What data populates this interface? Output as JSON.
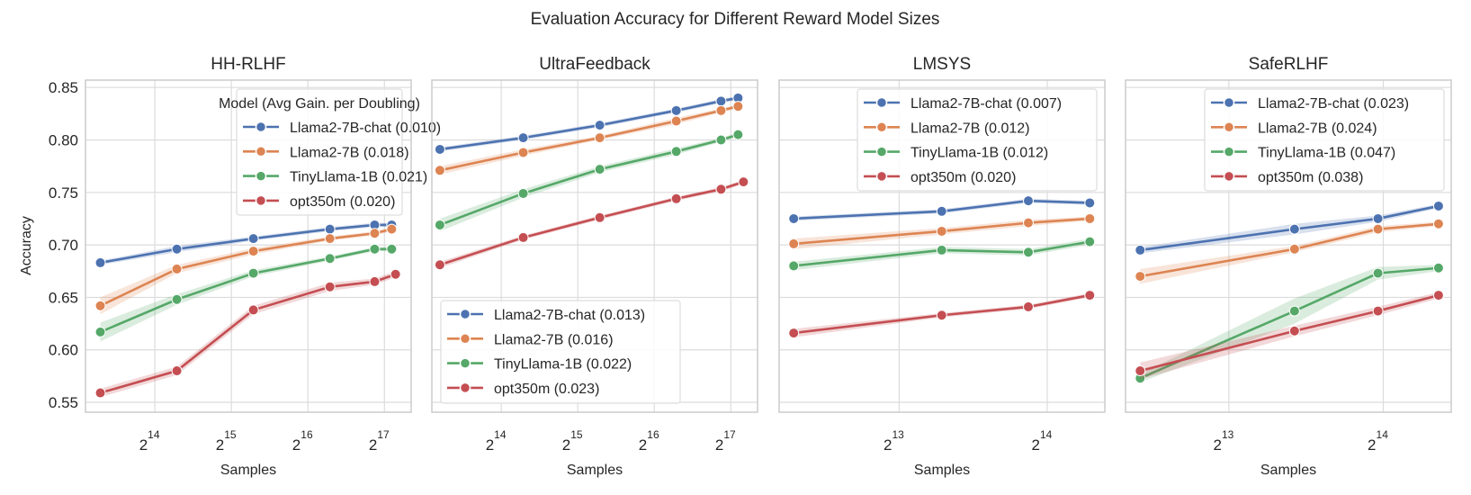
{
  "figure": {
    "title": "Evaluation Accuracy for Different Reward Model Sizes",
    "ylabel": "Accuracy",
    "xlabel": "Samples",
    "y_ticks": [
      "0.55",
      "0.60",
      "0.65",
      "0.70",
      "0.75",
      "0.80",
      "0.85"
    ],
    "colors": {
      "Llama2-7B-chat": "#4c72b0",
      "Llama2-7B": "#dd8452",
      "TinyLlama-1B": "#55a868",
      "opt350m": "#c44e52"
    }
  },
  "chart_data": [
    {
      "type": "line",
      "title": "HH-RLHF",
      "xlabel": "Samples",
      "ylabel": "Accuracy",
      "x_scale": "log2",
      "xlim": [
        8740,
        167000
      ],
      "ylim": [
        0.5406,
        0.857
      ],
      "x_tick_base": "2",
      "x_tick_exponents": [
        "14",
        "15",
        "16",
        "17"
      ],
      "grid": true,
      "legend": {
        "placement": "upper-right",
        "title": "Model (Avg Gain. per Doubling)"
      },
      "series": [
        {
          "name": "Llama2-7B-chat (0.010)",
          "model": "Llama2-7B-chat",
          "x": [
            10000,
            20000,
            40000,
            80000,
            120000,
            140000
          ],
          "y": [
            0.683,
            0.696,
            0.706,
            0.715,
            0.719,
            0.719
          ],
          "ci": [
            0.002,
            0.003,
            0.002,
            0.002,
            0.002,
            0.002
          ]
        },
        {
          "name": "Llama2-7B (0.018)",
          "model": "Llama2-7B",
          "x": [
            10000,
            20000,
            40000,
            80000,
            120000,
            140000
          ],
          "y": [
            0.642,
            0.677,
            0.694,
            0.706,
            0.711,
            0.715
          ],
          "ci": [
            0.008,
            0.004,
            0.003,
            0.002,
            0.002,
            0.002
          ]
        },
        {
          "name": "TinyLlama-1B (0.021)",
          "model": "TinyLlama-1B",
          "x": [
            10000,
            20000,
            40000,
            80000,
            120000,
            140000
          ],
          "y": [
            0.617,
            0.648,
            0.673,
            0.687,
            0.696,
            0.696
          ],
          "ci": [
            0.009,
            0.005,
            0.003,
            0.002,
            0.002,
            0.002
          ]
        },
        {
          "name": "opt350m (0.020)",
          "model": "opt350m",
          "x": [
            10000,
            20000,
            40000,
            80000,
            120000,
            145000
          ],
          "y": [
            0.559,
            0.58,
            0.638,
            0.66,
            0.665,
            0.672
          ],
          "ci": [
            0.004,
            0.004,
            0.004,
            0.004,
            0.003,
            0.003
          ]
        }
      ]
    },
    {
      "type": "line",
      "title": "UltraFeedback",
      "xlabel": "Samples",
      "x_scale": "log2",
      "xlim": [
        8740,
        167000
      ],
      "ylim": [
        0.5406,
        0.857
      ],
      "x_tick_base": "2",
      "x_tick_exponents": [
        "14",
        "15",
        "16",
        "17"
      ],
      "grid": true,
      "legend": {
        "placement": "lower-left"
      },
      "series": [
        {
          "name": "Llama2-7B-chat (0.013)",
          "model": "Llama2-7B-chat",
          "x": [
            9400,
            20000,
            40000,
            80000,
            120000,
            140000
          ],
          "y": [
            0.791,
            0.802,
            0.814,
            0.828,
            0.837,
            0.84
          ],
          "ci": [
            0.002,
            0.002,
            0.002,
            0.002,
            0.002,
            0.002
          ]
        },
        {
          "name": "Llama2-7B (0.016)",
          "model": "Llama2-7B",
          "x": [
            9400,
            20000,
            40000,
            80000,
            120000,
            140000
          ],
          "y": [
            0.771,
            0.788,
            0.802,
            0.818,
            0.828,
            0.832
          ],
          "ci": [
            0.004,
            0.003,
            0.002,
            0.003,
            0.002,
            0.002
          ]
        },
        {
          "name": "TinyLlama-1B (0.022)",
          "model": "TinyLlama-1B",
          "x": [
            9400,
            20000,
            40000,
            80000,
            120000,
            140000
          ],
          "y": [
            0.719,
            0.749,
            0.772,
            0.789,
            0.8,
            0.805
          ],
          "ci": [
            0.006,
            0.004,
            0.003,
            0.003,
            0.002,
            0.002
          ]
        },
        {
          "name": "opt350m (0.023)",
          "model": "opt350m",
          "x": [
            9400,
            20000,
            40000,
            80000,
            120000,
            147000
          ],
          "y": [
            0.681,
            0.707,
            0.726,
            0.744,
            0.753,
            0.76
          ],
          "ci": [
            0.003,
            0.002,
            0.002,
            0.002,
            0.002,
            0.002
          ]
        }
      ]
    },
    {
      "type": "line",
      "title": "LMSYS",
      "xlabel": "Samples",
      "x_scale": "log2",
      "xlim": [
        4670,
        21460
      ],
      "ylim": [
        0.5406,
        0.857
      ],
      "x_tick_base": "2",
      "x_tick_exponents": [
        "13",
        "14"
      ],
      "grid": true,
      "legend": {
        "placement": "upper-right"
      },
      "series": [
        {
          "name": "Llama2-7B-chat (0.007)",
          "model": "Llama2-7B-chat",
          "x": [
            5000,
            10000,
            15000,
            20000
          ],
          "y": [
            0.725,
            0.732,
            0.742,
            0.74
          ],
          "ci": [
            0.002,
            0.002,
            0.002,
            0.002
          ]
        },
        {
          "name": "Llama2-7B (0.012)",
          "model": "Llama2-7B",
          "x": [
            5000,
            10000,
            15000,
            20000
          ],
          "y": [
            0.701,
            0.713,
            0.721,
            0.725
          ],
          "ci": [
            0.005,
            0.003,
            0.003,
            0.002
          ]
        },
        {
          "name": "TinyLlama-1B (0.012)",
          "model": "TinyLlama-1B",
          "x": [
            5000,
            10000,
            15000,
            20000
          ],
          "y": [
            0.68,
            0.695,
            0.693,
            0.703
          ],
          "ci": [
            0.004,
            0.003,
            0.003,
            0.003
          ]
        },
        {
          "name": "opt350m (0.020)",
          "model": "opt350m",
          "x": [
            5000,
            10000,
            15000,
            20000
          ],
          "y": [
            0.616,
            0.633,
            0.641,
            0.652
          ],
          "ci": [
            0.004,
            0.002,
            0.002,
            0.002
          ]
        }
      ]
    },
    {
      "type": "line",
      "title": "SafeRLHF",
      "xlabel": "Samples",
      "x_scale": "log2",
      "xlim": [
        5150,
        22230
      ],
      "ylim": [
        0.5406,
        0.857
      ],
      "x_tick_base": "2",
      "x_tick_exponents": [
        "13",
        "14"
      ],
      "grid": true,
      "legend": {
        "placement": "upper-right"
      },
      "series": [
        {
          "name": "Llama2-7B-chat (0.023)",
          "model": "Llama2-7B-chat",
          "x": [
            5500,
            11000,
            16000,
            21000
          ],
          "y": [
            0.695,
            0.715,
            0.725,
            0.737
          ],
          "ci": [
            0.003,
            0.005,
            0.003,
            0.002
          ]
        },
        {
          "name": "Llama2-7B (0.024)",
          "model": "Llama2-7B",
          "x": [
            5500,
            11000,
            16000,
            21000
          ],
          "y": [
            0.67,
            0.696,
            0.715,
            0.72
          ],
          "ci": [
            0.007,
            0.003,
            0.003,
            0.002
          ]
        },
        {
          "name": "TinyLlama-1B (0.047)",
          "model": "TinyLlama-1B",
          "x": [
            5500,
            11000,
            16000,
            21000
          ],
          "y": [
            0.573,
            0.637,
            0.673,
            0.678
          ],
          "ci": [
            0.004,
            0.012,
            0.006,
            0.003
          ]
        },
        {
          "name": "opt350m (0.038)",
          "model": "opt350m",
          "x": [
            5500,
            11000,
            16000,
            21000
          ],
          "y": [
            0.58,
            0.618,
            0.637,
            0.652
          ],
          "ci": [
            0.008,
            0.005,
            0.004,
            0.003
          ]
        }
      ]
    }
  ]
}
